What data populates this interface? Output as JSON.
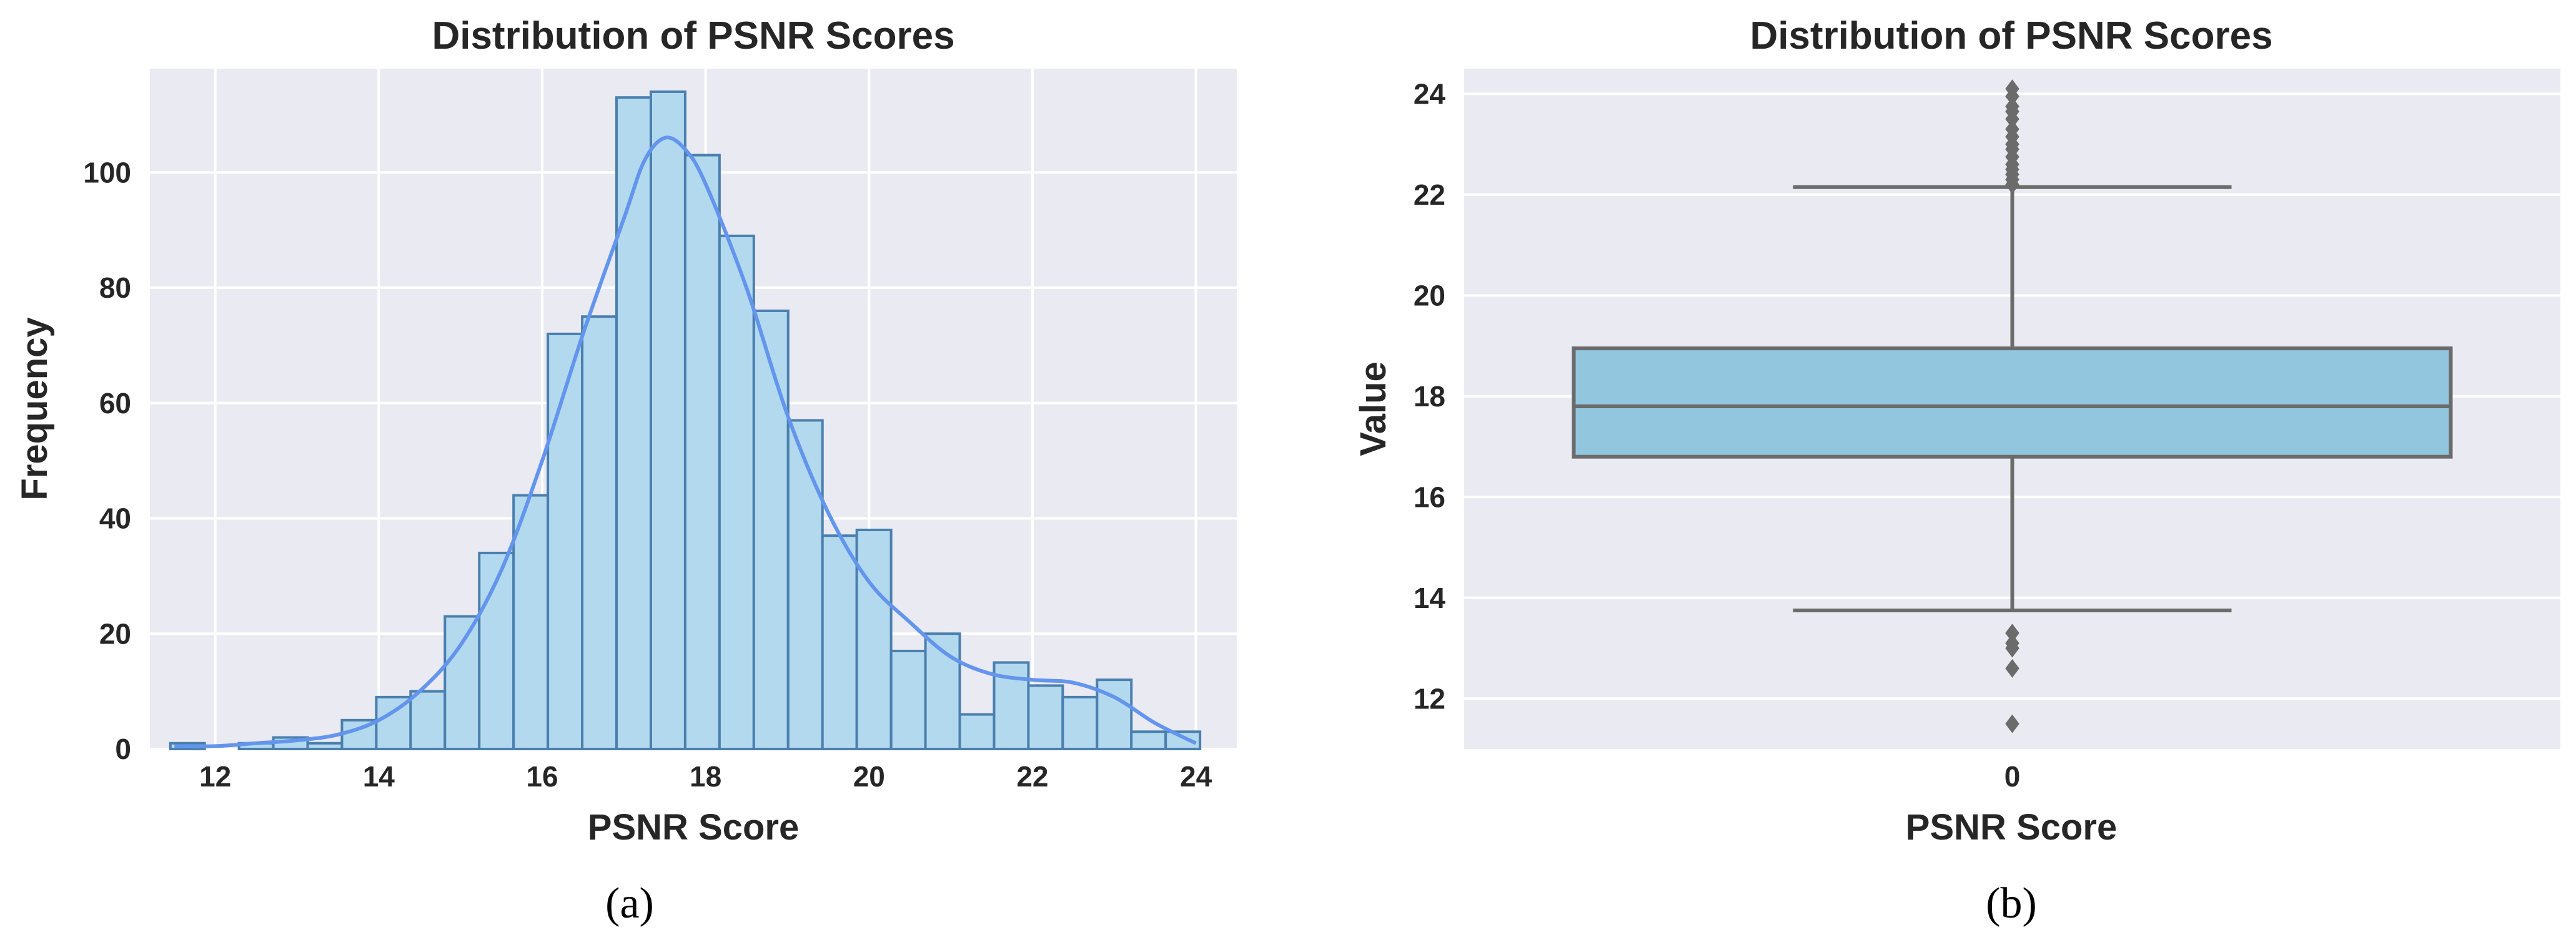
{
  "panel_labels": {
    "a": "(a)",
    "b": "(b)"
  },
  "colors": {
    "hist_fill": "#b3d9ee",
    "hist_edge": "#4a7fae",
    "kde_line": "#6495ed",
    "box_fill": "#92c6df",
    "box_edge": "#6b6b6b",
    "outlier": "#6b6b6b"
  },
  "chart_data": [
    {
      "type": "bar",
      "chart_kind": "histogram-with-kde",
      "title": "Distribution of PSNR Scores",
      "xlabel": "PSNR Score",
      "ylabel": "Frequency",
      "xlim": [
        11.2,
        24.5
      ],
      "ylim": [
        0,
        118
      ],
      "grid": true,
      "xticks": [
        12,
        14,
        16,
        18,
        20,
        22,
        24
      ],
      "yticks": [
        0,
        20,
        40,
        60,
        80,
        100
      ],
      "bin_edges": [
        11.45,
        11.87,
        12.29,
        12.71,
        13.13,
        13.55,
        13.97,
        14.39,
        14.81,
        15.23,
        15.65,
        16.07,
        16.49,
        16.91,
        17.33,
        17.75,
        18.17,
        18.59,
        19.01,
        19.43,
        19.85,
        20.27,
        20.69,
        21.11,
        21.53,
        21.95,
        22.37,
        22.79,
        23.21,
        23.63,
        24.05
      ],
      "counts": [
        1,
        0,
        1,
        2,
        1,
        5,
        9,
        10,
        23,
        34,
        44,
        72,
        75,
        113,
        114,
        103,
        89,
        76,
        57,
        37,
        38,
        17,
        20,
        6,
        15,
        11,
        9,
        12,
        3,
        3
      ],
      "kde": {
        "x": [
          11.5,
          12.0,
          12.5,
          13.0,
          13.5,
          14.0,
          14.5,
          15.0,
          15.5,
          16.0,
          16.5,
          17.0,
          17.25,
          17.5,
          17.75,
          18.0,
          18.5,
          19.0,
          19.5,
          20.0,
          20.5,
          21.0,
          21.5,
          22.0,
          22.5,
          23.0,
          23.5,
          24.0
        ],
        "y": [
          0.5,
          0.5,
          1,
          1.5,
          2.5,
          5,
          10,
          18,
          31,
          50,
          72,
          92,
          102,
          106,
          104,
          98,
          80,
          58,
          41,
          29,
          22,
          16,
          13,
          12,
          11.5,
          9,
          4.5,
          1
        ]
      }
    },
    {
      "type": "box",
      "title": "Distribution of PSNR Scores",
      "xlabel": "PSNR Score",
      "ylabel": "Value",
      "ylim": [
        11,
        24.5
      ],
      "grid": true,
      "yticks": [
        12,
        14,
        16,
        18,
        20,
        22,
        24
      ],
      "categories": [
        "0"
      ],
      "boxes": [
        {
          "name": "0",
          "whisker_low": 13.75,
          "q1": 16.8,
          "median": 17.8,
          "q3": 18.95,
          "whisker_high": 22.15,
          "outliers": [
            11.5,
            12.6,
            13.0,
            13.1,
            13.3,
            22.2,
            22.3,
            22.4,
            22.5,
            22.6,
            22.75,
            22.9,
            23.0,
            23.15,
            23.3,
            23.5,
            23.65,
            23.75,
            23.95,
            24.1
          ]
        }
      ]
    }
  ]
}
